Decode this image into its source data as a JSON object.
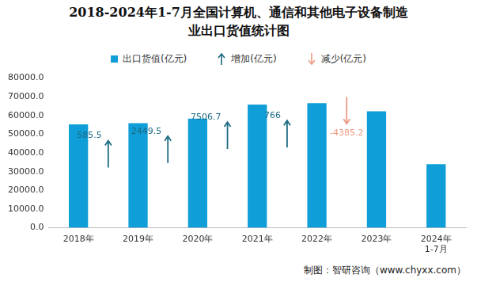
{
  "chart_data": {
    "type": "bar",
    "title": "2018-2024年1-7月全国计算机、通信和其他电子设备制造\n业出口货值统计图",
    "categories": [
      "2018年",
      "2019年",
      "2020年",
      "2021年",
      "2022年",
      "2023年",
      "2024年\n1-7月"
    ],
    "series": [
      {
        "name": "出口货值(亿元)",
        "color": "#0f9ed8",
        "values": [
          55300,
          55885.5,
          58335,
          65841.7,
          66607.7,
          62222.5,
          34000
        ]
      }
    ],
    "changes": {
      "values": [
        585.5,
        2449.5,
        7506.7,
        766,
        -4385.2
      ],
      "increase": {
        "name": "增加(亿元)",
        "color": "#1d6b82"
      },
      "decrease": {
        "name": "减少(亿元)",
        "color": "#ec9a82"
      }
    },
    "ylim": [
      0,
      80000
    ],
    "yticks": [
      {
        "value": 0,
        "label": "0.0"
      },
      {
        "value": 10000,
        "label": "10000.0"
      },
      {
        "value": 20000,
        "label": "20000.0"
      },
      {
        "value": 30000,
        "label": "30000.0"
      },
      {
        "value": 40000,
        "label": "40000.0"
      },
      {
        "value": 50000,
        "label": "50000.0"
      },
      {
        "value": 60000,
        "label": "60000.0"
      },
      {
        "value": 70000,
        "label": "70000.0"
      },
      {
        "value": 80000,
        "label": "80000.0"
      }
    ],
    "grid": false,
    "source": "制图：智研咨询（www.chyxx.com）"
  }
}
